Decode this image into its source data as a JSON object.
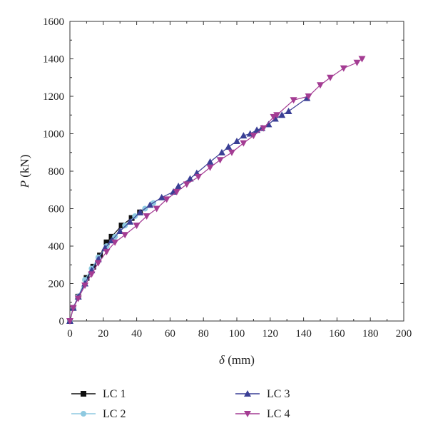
{
  "chart_data": {
    "type": "line",
    "title": "",
    "xlabel": {
      "symbol": "δ",
      "unit": " (mm)"
    },
    "ylabel": {
      "symbol": "P",
      "unit": " (kN)"
    },
    "xlim": [
      0,
      200
    ],
    "ylim": [
      0,
      1600
    ],
    "x_ticks": [
      0,
      20,
      40,
      60,
      80,
      100,
      120,
      140,
      160,
      180,
      200
    ],
    "y_ticks": [
      0,
      200,
      400,
      600,
      800,
      1000,
      1200,
      1400,
      1600
    ],
    "grid": false,
    "legend_position": "bottom",
    "series": [
      {
        "name": "LC 1",
        "color": "#111111",
        "marker": "square",
        "x": [
          0,
          2,
          5,
          10,
          14,
          18,
          22,
          25,
          31,
          37,
          42
        ],
        "y": [
          0,
          70,
          130,
          230,
          290,
          350,
          420,
          450,
          510,
          550,
          580
        ]
      },
      {
        "name": "LC 2",
        "color": "#8ec9e0",
        "marker": "circle",
        "x": [
          0,
          2,
          5,
          9,
          13,
          17,
          22,
          27,
          33,
          39,
          45,
          50
        ],
        "y": [
          0,
          70,
          130,
          220,
          280,
          340,
          400,
          450,
          510,
          560,
          600,
          630
        ]
      },
      {
        "name": "LC 3",
        "color": "#3a3f95",
        "marker": "triangle-up",
        "x": [
          0,
          2,
          5,
          9,
          13,
          17,
          21,
          25,
          30,
          36,
          42,
          48,
          55,
          62,
          65,
          72,
          76,
          84,
          91,
          95,
          100,
          104,
          108,
          112,
          115,
          119,
          123,
          127,
          131,
          142
        ],
        "y": [
          0,
          70,
          130,
          200,
          270,
          330,
          390,
          430,
          480,
          530,
          580,
          620,
          660,
          690,
          720,
          760,
          790,
          850,
          900,
          930,
          960,
          990,
          1000,
          1020,
          1030,
          1050,
          1080,
          1100,
          1120,
          1190
        ],
        "legend_color": "#3a3f95"
      },
      {
        "name": "LC 4",
        "color": "#a43c93",
        "marker": "triangle-down",
        "x": [
          0,
          2,
          5,
          9,
          13,
          17,
          22,
          27,
          33,
          40,
          46,
          52,
          58,
          64,
          70,
          77,
          84,
          90,
          97,
          104,
          110,
          116,
          122,
          124,
          134,
          143,
          150,
          156,
          164,
          172,
          175
        ],
        "y": [
          0,
          70,
          120,
          190,
          250,
          310,
          370,
          420,
          460,
          510,
          560,
          600,
          650,
          690,
          730,
          770,
          820,
          860,
          900,
          950,
          990,
          1030,
          1090,
          1100,
          1180,
          1200,
          1260,
          1300,
          1350,
          1380,
          1400
        ]
      }
    ]
  }
}
